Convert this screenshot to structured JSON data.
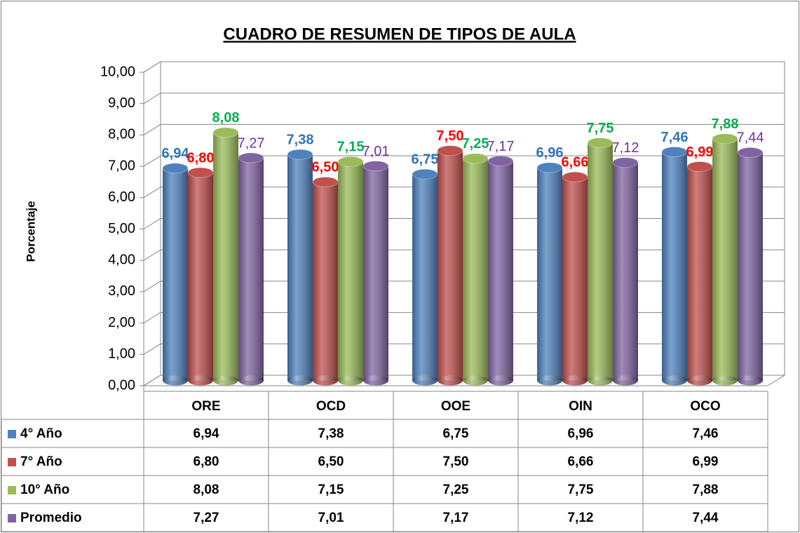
{
  "chart_data": {
    "type": "bar3d",
    "title": "CUADRO DE RESUMEN DE TIPOS DE AULA",
    "y_label": "Porcentaje",
    "categories": [
      "ORE",
      "OCD",
      "OOE",
      "OIN",
      "OCO"
    ],
    "series": [
      {
        "name": "4° Año",
        "color": "#4f81bd",
        "label_color": "#2e75b6",
        "values": [
          6.94,
          7.38,
          6.75,
          6.96,
          7.46
        ],
        "value_labels": [
          "6,94",
          "7,38",
          "6,75",
          "6,96",
          "7,46"
        ]
      },
      {
        "name": "7° Año",
        "color": "#c0504d",
        "label_color": "#ff0000",
        "values": [
          6.8,
          6.5,
          7.5,
          6.66,
          6.99
        ],
        "value_labels": [
          "6,80",
          "6,50",
          "7,50",
          "6,66",
          "6,99"
        ]
      },
      {
        "name": "10° Año",
        "color": "#9bbb59",
        "label_color": "#00b050",
        "values": [
          8.08,
          7.15,
          7.25,
          7.75,
          7.88
        ],
        "value_labels": [
          "8,08",
          "7,15",
          "7,25",
          "7,75",
          "7,88"
        ]
      },
      {
        "name": "Promedio",
        "color": "#8064a2",
        "label_color": "#7030a0",
        "values": [
          7.27,
          7.01,
          7.17,
          7.12,
          7.44
        ],
        "value_labels": [
          "7,27",
          "7,01",
          "7,17",
          "7,12",
          "7,44"
        ]
      }
    ],
    "ylim": [
      0,
      10
    ],
    "yticks": [
      {
        "value": 0,
        "label": "0,00"
      },
      {
        "value": 1,
        "label": "1,00"
      },
      {
        "value": 2,
        "label": "2,00"
      },
      {
        "value": 3,
        "label": "3,00"
      },
      {
        "value": 4,
        "label": "4,00"
      },
      {
        "value": 5,
        "label": "5,00"
      },
      {
        "value": 6,
        "label": "6,00"
      },
      {
        "value": 7,
        "label": "7,00"
      },
      {
        "value": 8,
        "label": "8,00"
      },
      {
        "value": 9,
        "label": "9,00"
      },
      {
        "value": 10,
        "label": "10,00"
      }
    ],
    "grid": true
  }
}
